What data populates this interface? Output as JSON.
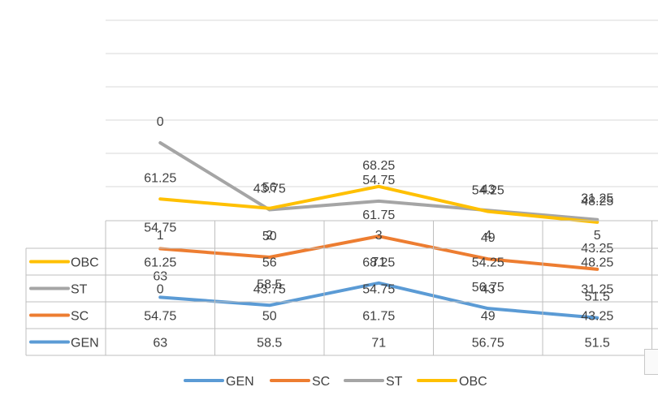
{
  "chart_data": {
    "type": "line",
    "categories": [
      "1",
      "2",
      "3",
      "4",
      "5"
    ],
    "series": [
      {
        "name": "GEN",
        "color": "#5B9BD5",
        "values": [
          63,
          58.5,
          71,
          56.75,
          51.5
        ]
      },
      {
        "name": "SC",
        "color": "#ED7D31",
        "values": [
          54.75,
          50,
          61.75,
          49,
          43.25
        ]
      },
      {
        "name": "ST",
        "color": "#A5A5A5",
        "values": [
          0,
          43.75,
          54.75,
          43,
          31.25
        ]
      },
      {
        "name": "OBC",
        "color": "#FFC000",
        "values": [
          61.25,
          56,
          68.25,
          54.25,
          48.25
        ]
      }
    ],
    "table_order": [
      "OBC",
      "ST",
      "SC",
      "GEN"
    ],
    "legend_position": "bottom",
    "data_table": true,
    "gridlines": true,
    "title": "",
    "xlabel": "",
    "ylabel": ""
  }
}
